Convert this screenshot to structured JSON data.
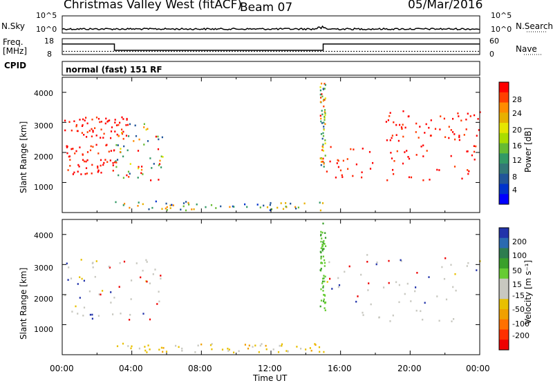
{
  "header": {
    "title": "Christmas Valley West (fitACF)",
    "beam": "Beam 07",
    "date": "05/Mar/2016"
  },
  "panels": {
    "nsky_label": "N.Sky",
    "nsky_ticks": [
      "10^5",
      "10^0"
    ],
    "nsky_right_ticks": [
      "10^5",
      "10^0"
    ],
    "nsearch_label": "N.Search",
    "freq_label": "Freq.",
    "freq_unit": "[MHz]",
    "freq_ticks": [
      "18",
      "8"
    ],
    "nave_label": "Nave",
    "nave_ticks": [
      "60",
      "0"
    ],
    "cpid_label": "CPID",
    "cpid_text": "normal (fast) 151 RF"
  },
  "power_panel": {
    "ylabel": "Slant Range [km]",
    "cbar_label": "Power [dB]",
    "cbar_ticks": [
      "28",
      "24",
      "20",
      "16",
      "12",
      "8",
      "4"
    ],
    "cbar_colors": [
      "#ff0000",
      "#ff4000",
      "#ff8c00",
      "#e8b000",
      "#e6e600",
      "#aadd00",
      "#66bb33",
      "#339966",
      "#337777",
      "#225599",
      "#0033cc",
      "#0000ff"
    ]
  },
  "velocity_panel": {
    "ylabel": "Slant Range [km]",
    "cbar_label": "Velocity [m s⁻¹]",
    "cbar_ticks": [
      "200",
      "100",
      "50",
      "15",
      "-15",
      "-50",
      "-100",
      "-200"
    ],
    "cbar_colors": [
      "#2233aa",
      "#2a6ab0",
      "#2e7d4f",
      "#3aa02a",
      "#66cc33",
      "#c8c8c0",
      "#c8c8c0",
      "#e8c000",
      "#f0a000",
      "#ff7000",
      "#ff3000",
      "#ee0000"
    ]
  },
  "xaxis": {
    "label": "Time UT",
    "ticks": [
      "00:00",
      "04:00",
      "08:00",
      "12:00",
      "16:00",
      "20:00",
      "00:00"
    ]
  },
  "chart_data": {
    "type": "heatmap",
    "title": "Christmas Valley West (fitACF)",
    "subtitle": "Beam 07  05/Mar/2016",
    "xlabel": "Time UT",
    "ylabel": "Slant Range [km]",
    "x_ticks": [
      "00:00",
      "04:00",
      "08:00",
      "12:00",
      "16:00",
      "20:00",
      "00:00"
    ],
    "xlim_hours": [
      0,
      24
    ],
    "ylim_km": [
      0,
      4500
    ],
    "y_ticks": [
      1000,
      2000,
      3000,
      4000
    ],
    "frequency_mhz": [
      {
        "start_hour": 0,
        "end_hour": 3,
        "value": 15
      },
      {
        "start_hour": 3,
        "end_hour": 15,
        "value": 9
      },
      {
        "start_hour": 15,
        "end_hour": 24,
        "value": 15
      }
    ],
    "nave_level": 12,
    "nsky_level_exp": 1.2,
    "scatter_regions": [
      {
        "panel": "power",
        "t0": 0.1,
        "t1": 3.0,
        "r0": 1300,
        "r1": 2300,
        "level": "high"
      },
      {
        "panel": "power",
        "t0": 0.1,
        "t1": 3.8,
        "r0": 2500,
        "r1": 3200,
        "level": "high"
      },
      {
        "panel": "power",
        "t0": 3.0,
        "t1": 5.8,
        "r0": 1100,
        "r1": 3100,
        "level": "mixed"
      },
      {
        "panel": "power",
        "t0": 14.8,
        "t1": 15.1,
        "r0": 1500,
        "r1": 4400,
        "level": "mixed"
      },
      {
        "panel": "power",
        "t0": 15.1,
        "t1": 24.0,
        "r0": 1100,
        "r1": 2300,
        "level": "high"
      },
      {
        "panel": "power",
        "t0": 18.5,
        "t1": 24.0,
        "r0": 2400,
        "r1": 3400,
        "level": "high"
      },
      {
        "panel": "power",
        "t0": 3.0,
        "t1": 15.0,
        "r0": 100,
        "r1": 400,
        "level": "low"
      },
      {
        "panel": "velocity",
        "t0": 0.1,
        "t1": 5.8,
        "r0": 1100,
        "r1": 3200,
        "level": "near-zero"
      },
      {
        "panel": "velocity",
        "t0": 15.1,
        "t1": 24.0,
        "r0": 1100,
        "r1": 3400,
        "level": "near-zero"
      },
      {
        "panel": "velocity",
        "t0": 14.8,
        "t1": 15.1,
        "r0": 1500,
        "r1": 4400,
        "level": "positive"
      },
      {
        "panel": "velocity",
        "t0": 3.0,
        "t1": 15.0,
        "r0": 100,
        "r1": 400,
        "level": "negative"
      }
    ]
  }
}
